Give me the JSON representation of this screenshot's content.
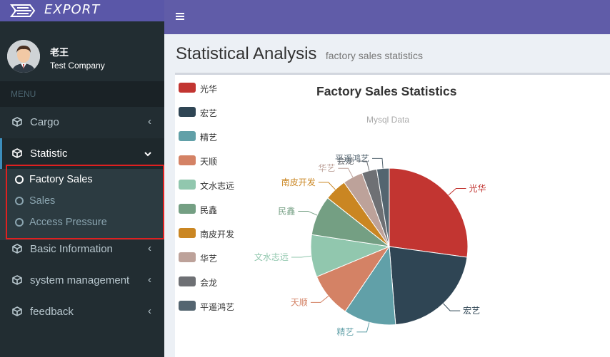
{
  "logo": {
    "text": "EXPORT"
  },
  "user": {
    "name": "老王",
    "company": "Test Company"
  },
  "menu": {
    "header": "MENU",
    "items": [
      {
        "label": "Cargo",
        "expanded": false
      },
      {
        "label": "Statistic",
        "expanded": true,
        "children": [
          "Factory Sales",
          "Sales",
          "Access Pressure"
        ]
      },
      {
        "label": "Basic Information",
        "expanded": false
      },
      {
        "label": "system management",
        "expanded": false
      },
      {
        "label": "feedback",
        "expanded": false
      }
    ]
  },
  "page": {
    "title": "Statistical Analysis",
    "subtitle": "factory sales statistics"
  },
  "chart_data": {
    "type": "pie",
    "title": "Factory Sales Statistics",
    "subtitle": "Mysql Data",
    "legend_position": "left",
    "slices": [
      {
        "name": "光华",
        "value": 26.5,
        "color": "#c23531"
      },
      {
        "name": "宏艺",
        "value": 21.0,
        "color": "#2f4554"
      },
      {
        "name": "精艺",
        "value": 10.5,
        "color": "#61a0a8"
      },
      {
        "name": "天顺",
        "value": 9.0,
        "color": "#d48265"
      },
      {
        "name": "文水志远",
        "value": 8.5,
        "color": "#91c7ae"
      },
      {
        "name": "民鑫",
        "value": 8.0,
        "color": "#749f83"
      },
      {
        "name": "南皮开发",
        "value": 4.5,
        "color": "#ca8622"
      },
      {
        "name": "华艺",
        "value": 4.0,
        "color": "#bda29a"
      },
      {
        "name": "会龙",
        "value": 3.0,
        "color": "#6e7074"
      },
      {
        "name": "平遥鸿艺",
        "value": 2.5,
        "color": "#546570"
      }
    ]
  },
  "colors": {
    "sidebar": "#222d32",
    "topbar": "#605ca8",
    "accent": "#3c8dbc",
    "highlight": "#e02020"
  }
}
